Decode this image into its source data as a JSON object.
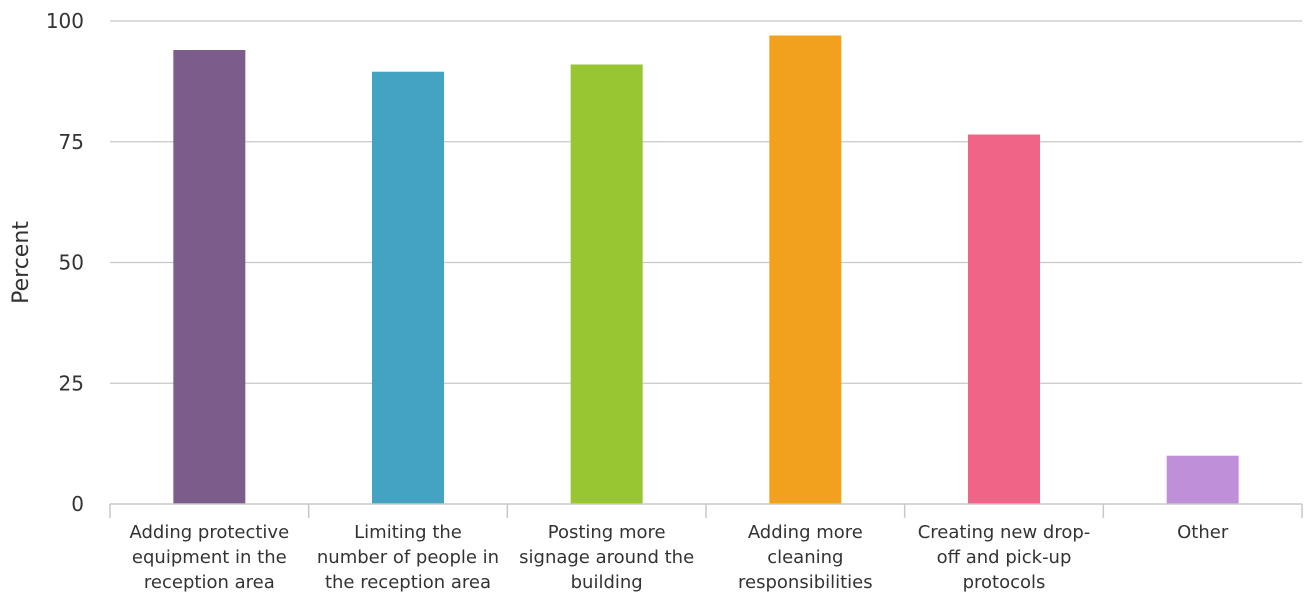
{
  "chart_data": {
    "type": "bar",
    "title": "",
    "xlabel": "",
    "ylabel": "Percent",
    "ylim": [
      0,
      100
    ],
    "yticks": [
      0,
      25,
      50,
      75,
      100
    ],
    "grid": true,
    "legend": "none",
    "categories": [
      [
        "Adding protective",
        "equipment in the",
        "reception area"
      ],
      [
        "Limiting the",
        "number of people in",
        "the reception area"
      ],
      [
        "Posting more",
        "signage around the",
        "building"
      ],
      [
        "Adding more",
        "cleaning",
        "responsibilities"
      ],
      [
        "Creating new drop-",
        "off and pick-up",
        "protocols"
      ],
      [
        "Other"
      ]
    ],
    "values": [
      94,
      89.5,
      91,
      97,
      76.5,
      10
    ],
    "colors": [
      "#7b5c8b",
      "#44a2c2",
      "#97c632",
      "#f2a11e",
      "#f06587",
      "#c08fd9"
    ]
  }
}
